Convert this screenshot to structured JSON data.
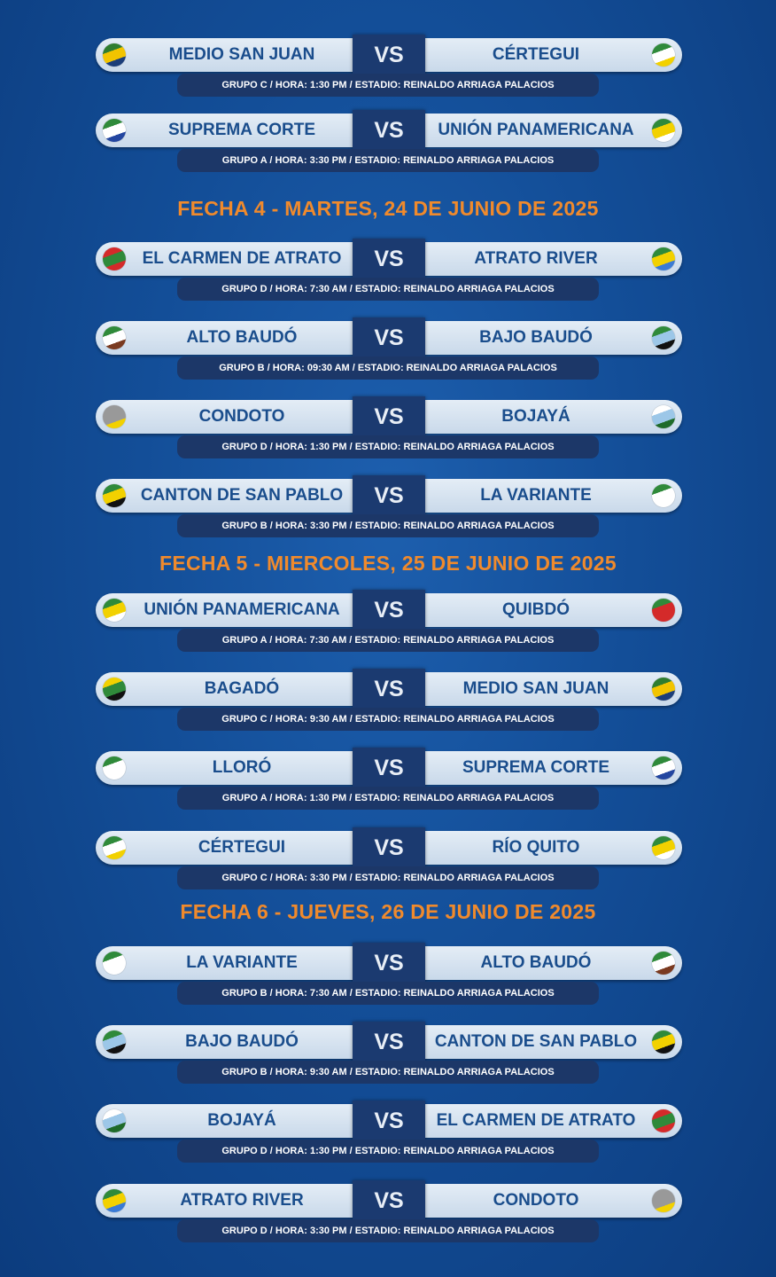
{
  "venue_line": "ESTADIO: REINALDO ARRIAGA PALACIOS",
  "vs_label": "VS",
  "sections": [
    {
      "heading": "",
      "matches": [
        {
          "home": "MEDIO SAN JUAN",
          "away": "CÉRTEGUI",
          "info": "GRUPO C / HORA: 1:30 PM / ESTADIO: REINALDO ARRIAGA PALACIOS",
          "home_flag": [
            "#2f7d2f",
            "#f2c400",
            "#1c3e7a"
          ],
          "away_flag": [
            "#2f8a3a",
            "#ffffff",
            "#f2d100"
          ]
        },
        {
          "home": "SUPREMA CORTE",
          "away": "UNIÓN PANAMERICANA",
          "info": "GRUPO A / HORA: 3:30 PM / ESTADIO: REINALDO ARRIAGA PALACIOS",
          "home_flag": [
            "#2f8a3a",
            "#ffffff",
            "#2346a0"
          ],
          "away_flag": [
            "#2f8a3a",
            "#f2d100",
            "#ffffff"
          ]
        }
      ]
    },
    {
      "heading": "FECHA 4 - MARTES, 24 DE JUNIO DE 2025",
      "matches": [
        {
          "home": "EL CARMEN DE ATRATO",
          "away": "ATRATO RIVER",
          "info": "GRUPO D / HORA: 7:30 AM / ESTADIO: REINALDO ARRIAGA PALACIOS",
          "home_flag": [
            "#d42a2a",
            "#2f8a3a",
            "#d42a2a"
          ],
          "away_flag": [
            "#2f8a3a",
            "#f2d100",
            "#3a7bd5"
          ]
        },
        {
          "home": "ALTO BAUDÓ",
          "away": "BAJO BAUDÓ",
          "info": "GRUPO B / HORA: 09:30 AM / ESTADIO: REINALDO ARRIAGA PALACIOS",
          "home_flag": [
            "#2f8a3a",
            "#ffffff",
            "#7a3a20"
          ],
          "away_flag": [
            "#2f8a3a",
            "#9cc7e8",
            "#111111"
          ]
        },
        {
          "home": "CONDOTO",
          "away": "BOJAYÁ",
          "info": "GRUPO D / HORA: 1:30 PM / ESTADIO: REINALDO ARRIAGA PALACIOS",
          "home_flag": [
            "#999999",
            "#999999",
            "#f2d100"
          ],
          "away_flag": [
            "#ffffff",
            "#9cc7e8",
            "#1f6b2a"
          ]
        },
        {
          "home": "CANTON DE SAN PABLO",
          "away": "LA VARIANTE",
          "info": "GRUPO B / HORA: 3:30 PM / ESTADIO: REINALDO ARRIAGA PALACIOS",
          "home_flag": [
            "#2f8a3a",
            "#f2d100",
            "#111111"
          ],
          "away_flag": [
            "#2f8a3a",
            "#ffffff",
            "#ffffff"
          ]
        }
      ]
    },
    {
      "heading": "FECHA 5 - MIERCOLES, 25 DE JUNIO DE 2025",
      "matches": [
        {
          "home": "UNIÓN PANAMERICANA",
          "away": "QUIBDÓ",
          "info": "GRUPO A / HORA: 7:30 AM / ESTADIO: REINALDO ARRIAGA PALACIOS",
          "home_flag": [
            "#2f8a3a",
            "#f2d100",
            "#ffffff"
          ],
          "away_flag": [
            "#2f8a3a",
            "#d42a2a",
            "#d42a2a"
          ]
        },
        {
          "home": "BAGADÓ",
          "away": "MEDIO SAN JUAN",
          "info": "GRUPO C / HORA: 9:30 AM / ESTADIO: REINALDO ARRIAGA PALACIOS",
          "home_flag": [
            "#f2d100",
            "#2f8a3a",
            "#111111"
          ],
          "away_flag": [
            "#2f7d2f",
            "#f2c400",
            "#1c3e7a"
          ]
        },
        {
          "home": "LLORÓ",
          "away": "SUPREMA CORTE",
          "info": "GRUPO A / HORA: 1:30 PM / ESTADIO: REINALDO ARRIAGA PALACIOS",
          "home_flag": [
            "#2f8a3a",
            "#ffffff",
            "#ffffff"
          ],
          "away_flag": [
            "#2f8a3a",
            "#ffffff",
            "#2346a0"
          ]
        },
        {
          "home": "CÉRTEGUI",
          "away": "RÍO QUITO",
          "info": "GRUPO C / HORA: 3:30 PM / ESTADIO: REINALDO ARRIAGA PALACIOS",
          "home_flag": [
            "#2f8a3a",
            "#ffffff",
            "#f2d100"
          ],
          "away_flag": [
            "#2f8a3a",
            "#f2d100",
            "#ffffff"
          ]
        }
      ]
    },
    {
      "heading": "FECHA 6 - JUEVES, 26 DE JUNIO DE 2025",
      "matches": [
        {
          "home": "LA VARIANTE",
          "away": "ALTO BAUDÓ",
          "info": "GRUPO B / HORA: 7:30 AM / ESTADIO: REINALDO ARRIAGA PALACIOS",
          "home_flag": [
            "#2f8a3a",
            "#ffffff",
            "#ffffff"
          ],
          "away_flag": [
            "#2f8a3a",
            "#ffffff",
            "#7a3a20"
          ]
        },
        {
          "home": "BAJO BAUDÓ",
          "away": "CANTON DE SAN PABLO",
          "info": "GRUPO B / HORA: 9:30 AM / ESTADIO: REINALDO ARRIAGA PALACIOS",
          "home_flag": [
            "#2f8a3a",
            "#9cc7e8",
            "#111111"
          ],
          "away_flag": [
            "#2f8a3a",
            "#f2d100",
            "#111111"
          ]
        },
        {
          "home": "BOJAYÁ",
          "away": "EL CARMEN DE ATRATO",
          "info": "GRUPO D / HORA: 1:30 PM / ESTADIO: REINALDO ARRIAGA PALACIOS",
          "home_flag": [
            "#ffffff",
            "#9cc7e8",
            "#1f6b2a"
          ],
          "away_flag": [
            "#d42a2a",
            "#2f8a3a",
            "#d42a2a"
          ]
        },
        {
          "home": "ATRATO RIVER",
          "away": "CONDOTO",
          "info": "GRUPO D / HORA: 3:30 PM / ESTADIO: REINALDO ARRIAGA PALACIOS",
          "home_flag": [
            "#2f8a3a",
            "#f2d100",
            "#3a7bd5"
          ],
          "away_flag": [
            "#999999",
            "#999999",
            "#f2d100"
          ]
        }
      ]
    }
  ]
}
